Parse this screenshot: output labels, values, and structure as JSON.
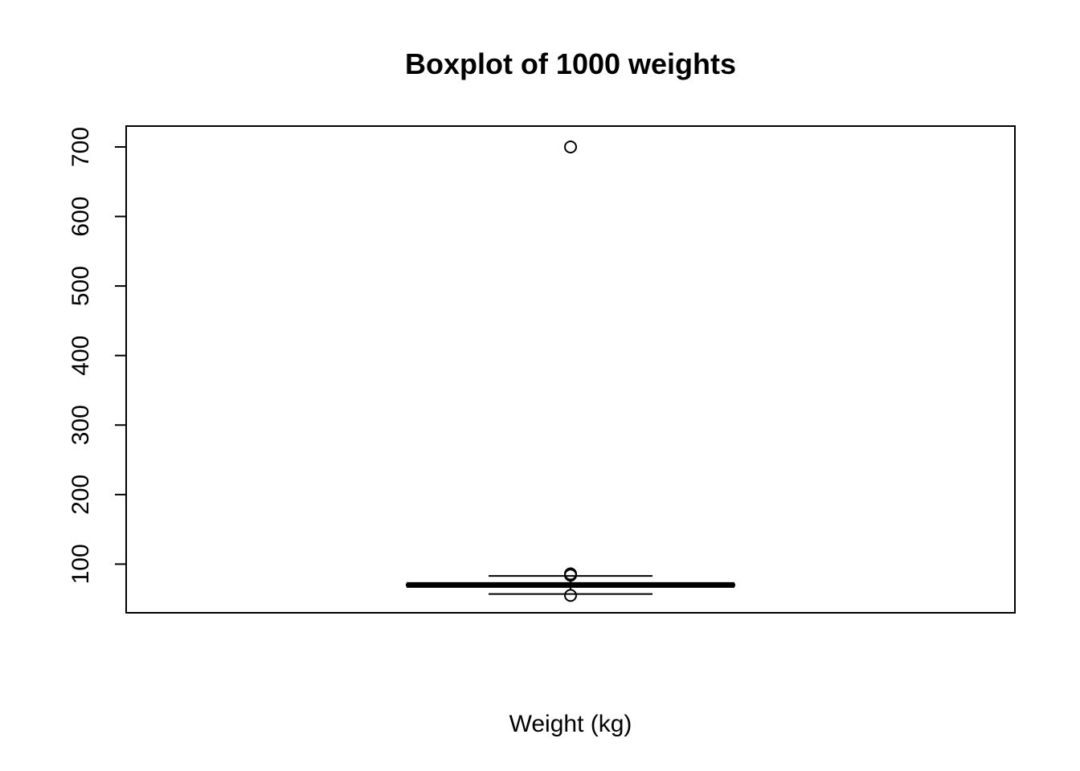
{
  "chart_data": {
    "type": "boxplot",
    "title": "Boxplot of 1000 weights",
    "xlabel": "Weight (kg)",
    "ylabel": "",
    "ylim": [
      30,
      730
    ],
    "yticks": [
      100,
      200,
      300,
      400,
      500,
      600,
      700
    ],
    "ytick_labels": [
      "100",
      "200",
      "300",
      "400",
      "500",
      "600",
      "700"
    ],
    "grid": false,
    "box": {
      "whisker_low": 57,
      "q1": 69,
      "median": 70,
      "q3": 71,
      "whisker_high": 83,
      "outliers": [
        700,
        86,
        85,
        84,
        55
      ]
    }
  }
}
